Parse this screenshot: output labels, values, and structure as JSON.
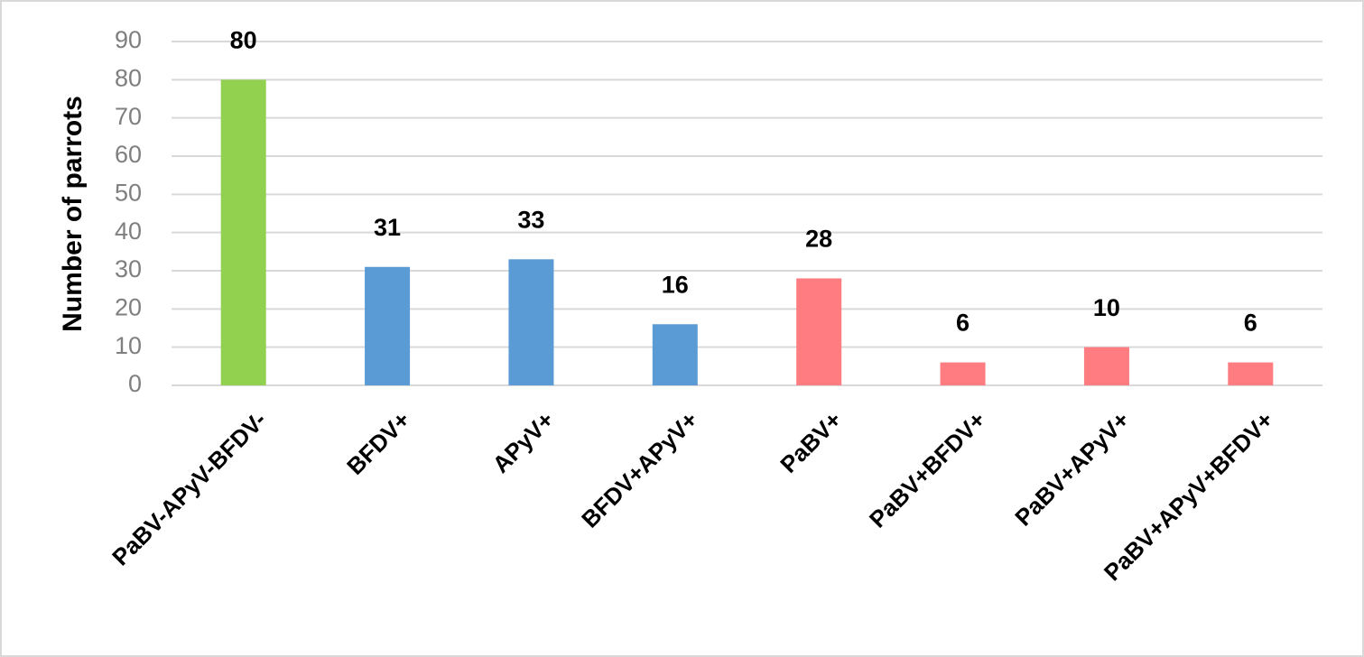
{
  "chart_data": {
    "type": "bar",
    "y_label": "Number of parrots",
    "categories": [
      "PaBV-APyV-BFDV-",
      "BFDV+",
      "APyV+",
      "BFDV+APyV+",
      "PaBV+",
      "PaBV+BFDV+",
      "PaBV+APyV+",
      "PaBV+APyV+BFDV+"
    ],
    "values": [
      80,
      31,
      33,
      16,
      28,
      6,
      10,
      6
    ],
    "colors": [
      "#92d050",
      "#5b9bd5",
      "#5b9bd5",
      "#5b9bd5",
      "#ff7c80",
      "#ff7c80",
      "#ff7c80",
      "#ff7c80"
    ],
    "ylim": [
      0,
      90
    ],
    "yticks": [
      0,
      10,
      20,
      30,
      40,
      50,
      60,
      70,
      80,
      90
    ],
    "grid": true
  }
}
